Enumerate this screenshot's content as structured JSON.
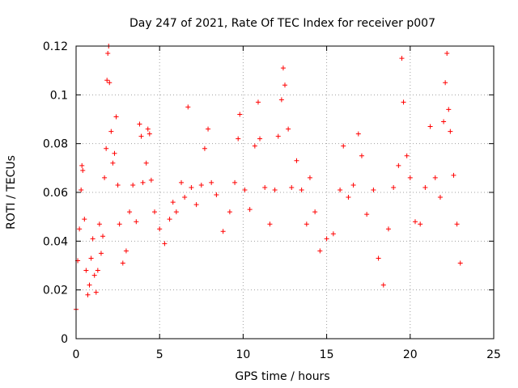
{
  "chart_data": {
    "type": "scatter",
    "title": "Day 247 of 2021, Rate Of TEC Index for receiver p007",
    "xlabel": "GPS time / hours",
    "ylabel": "ROTI / TECUs",
    "xlim": [
      0,
      25
    ],
    "ylim": [
      0,
      0.12
    ],
    "xticks": [
      0,
      5,
      10,
      15,
      20,
      25
    ],
    "xtick_labels": [
      "0",
      "5",
      "10",
      "15",
      "20",
      "25"
    ],
    "yticks": [
      0,
      0.02,
      0.04,
      0.06,
      0.08,
      0.1,
      0.12
    ],
    "ytick_labels": [
      "0",
      "0.02",
      "0.04",
      "0.06",
      "0.08",
      "0.1",
      "0.12"
    ],
    "grid": true,
    "marker": "plus",
    "color": "#ff0000",
    "series": [
      {
        "points": [
          [
            0.0,
            0.012
          ],
          [
            0.1,
            0.032
          ],
          [
            0.2,
            0.045
          ],
          [
            0.3,
            0.061
          ],
          [
            0.35,
            0.071
          ],
          [
            0.4,
            0.069
          ],
          [
            0.5,
            0.049
          ],
          [
            0.6,
            0.028
          ],
          [
            0.7,
            0.018
          ],
          [
            0.8,
            0.022
          ],
          [
            0.9,
            0.033
          ],
          [
            1.0,
            0.041
          ],
          [
            1.1,
            0.026
          ],
          [
            1.2,
            0.019
          ],
          [
            1.3,
            0.028
          ],
          [
            1.4,
            0.047
          ],
          [
            1.5,
            0.035
          ],
          [
            1.6,
            0.042
          ],
          [
            1.7,
            0.066
          ],
          [
            1.8,
            0.078
          ],
          [
            1.85,
            0.106
          ],
          [
            1.9,
            0.117
          ],
          [
            1.95,
            0.12
          ],
          [
            2.0,
            0.105
          ],
          [
            2.1,
            0.085
          ],
          [
            2.2,
            0.072
          ],
          [
            2.3,
            0.076
          ],
          [
            2.4,
            0.091
          ],
          [
            2.5,
            0.063
          ],
          [
            2.6,
            0.047
          ],
          [
            2.8,
            0.031
          ],
          [
            3.0,
            0.036
          ],
          [
            3.2,
            0.052
          ],
          [
            3.4,
            0.063
          ],
          [
            3.6,
            0.048
          ],
          [
            3.8,
            0.088
          ],
          [
            3.9,
            0.083
          ],
          [
            4.0,
            0.064
          ],
          [
            4.2,
            0.072
          ],
          [
            4.3,
            0.086
          ],
          [
            4.4,
            0.084
          ],
          [
            4.5,
            0.065
          ],
          [
            4.7,
            0.052
          ],
          [
            5.0,
            0.045
          ],
          [
            5.3,
            0.039
          ],
          [
            5.6,
            0.049
          ],
          [
            5.8,
            0.056
          ],
          [
            6.0,
            0.052
          ],
          [
            6.3,
            0.064
          ],
          [
            6.5,
            0.058
          ],
          [
            6.7,
            0.095
          ],
          [
            6.9,
            0.062
          ],
          [
            7.2,
            0.055
          ],
          [
            7.5,
            0.063
          ],
          [
            7.7,
            0.078
          ],
          [
            7.9,
            0.086
          ],
          [
            8.1,
            0.064
          ],
          [
            8.4,
            0.059
          ],
          [
            8.8,
            0.044
          ],
          [
            9.2,
            0.052
          ],
          [
            9.5,
            0.064
          ],
          [
            9.7,
            0.082
          ],
          [
            9.8,
            0.092
          ],
          [
            10.1,
            0.061
          ],
          [
            10.4,
            0.053
          ],
          [
            10.7,
            0.079
          ],
          [
            10.9,
            0.097
          ],
          [
            11.0,
            0.082
          ],
          [
            11.3,
            0.062
          ],
          [
            11.6,
            0.047
          ],
          [
            11.9,
            0.061
          ],
          [
            12.1,
            0.083
          ],
          [
            12.3,
            0.098
          ],
          [
            12.4,
            0.111
          ],
          [
            12.5,
            0.104
          ],
          [
            12.7,
            0.086
          ],
          [
            12.9,
            0.062
          ],
          [
            13.2,
            0.073
          ],
          [
            13.5,
            0.061
          ],
          [
            13.8,
            0.047
          ],
          [
            14.0,
            0.066
          ],
          [
            14.3,
            0.052
          ],
          [
            14.6,
            0.036
          ],
          [
            15.0,
            0.041
          ],
          [
            15.4,
            0.043
          ],
          [
            15.8,
            0.061
          ],
          [
            16.0,
            0.079
          ],
          [
            16.3,
            0.058
          ],
          [
            16.6,
            0.063
          ],
          [
            16.9,
            0.084
          ],
          [
            17.1,
            0.075
          ],
          [
            17.4,
            0.051
          ],
          [
            17.8,
            0.061
          ],
          [
            18.1,
            0.033
          ],
          [
            18.4,
            0.022
          ],
          [
            18.7,
            0.045
          ],
          [
            19.0,
            0.062
          ],
          [
            19.3,
            0.071
          ],
          [
            19.5,
            0.115
          ],
          [
            19.6,
            0.097
          ],
          [
            19.8,
            0.075
          ],
          [
            20.0,
            0.066
          ],
          [
            20.3,
            0.048
          ],
          [
            20.6,
            0.047
          ],
          [
            20.9,
            0.062
          ],
          [
            21.2,
            0.087
          ],
          [
            21.5,
            0.066
          ],
          [
            21.8,
            0.058
          ],
          [
            22.0,
            0.089
          ],
          [
            22.1,
            0.105
          ],
          [
            22.2,
            0.117
          ],
          [
            22.3,
            0.094
          ],
          [
            22.4,
            0.085
          ],
          [
            22.6,
            0.067
          ],
          [
            22.8,
            0.047
          ],
          [
            23.0,
            0.031
          ]
        ]
      }
    ]
  }
}
